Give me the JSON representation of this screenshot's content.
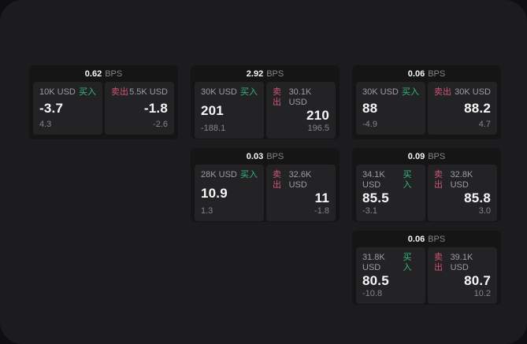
{
  "labels": {
    "buy": "买入",
    "sell": "卖出",
    "bps_unit": "BPS"
  },
  "colors": {
    "buy_green": "#35b97b",
    "sell_red": "#cd5571",
    "page_bg": "#1c1c1e",
    "card_bg": "#151516",
    "panel_bg": "#232326"
  },
  "cards": [
    {
      "bps": "0.62",
      "buy": {
        "amount": "10K USD",
        "value": "-3.7",
        "sub": "4.3"
      },
      "sell": {
        "amount": "5.5K USD",
        "value": "-1.8",
        "sub": "-2.6"
      }
    },
    {
      "bps": "2.92",
      "buy": {
        "amount": "30K USD",
        "value": "201",
        "sub": "-188.1"
      },
      "sell": {
        "amount": "30.1K USD",
        "value": "210",
        "sub": "196.5"
      }
    },
    {
      "bps": "0.06",
      "buy": {
        "amount": "30K USD",
        "value": "88",
        "sub": "-4.9"
      },
      "sell": {
        "amount": "30K USD",
        "value": "88.2",
        "sub": "4.7"
      }
    },
    {
      "bps": "0.03",
      "buy": {
        "amount": "28K USD",
        "value": "10.9",
        "sub": "1.3"
      },
      "sell": {
        "amount": "32.6K USD",
        "value": "11",
        "sub": "-1.8"
      }
    },
    {
      "bps": "0.09",
      "buy": {
        "amount": "34.1K USD",
        "value": "85.5",
        "sub": "-3.1"
      },
      "sell": {
        "amount": "32.8K USD",
        "value": "85.8",
        "sub": "3.0"
      }
    },
    {
      "bps": "0.06",
      "buy": {
        "amount": "31.8K USD",
        "value": "80.5",
        "sub": "-10.8"
      },
      "sell": {
        "amount": "39.1K USD",
        "value": "80.7",
        "sub": "10.2"
      }
    }
  ]
}
